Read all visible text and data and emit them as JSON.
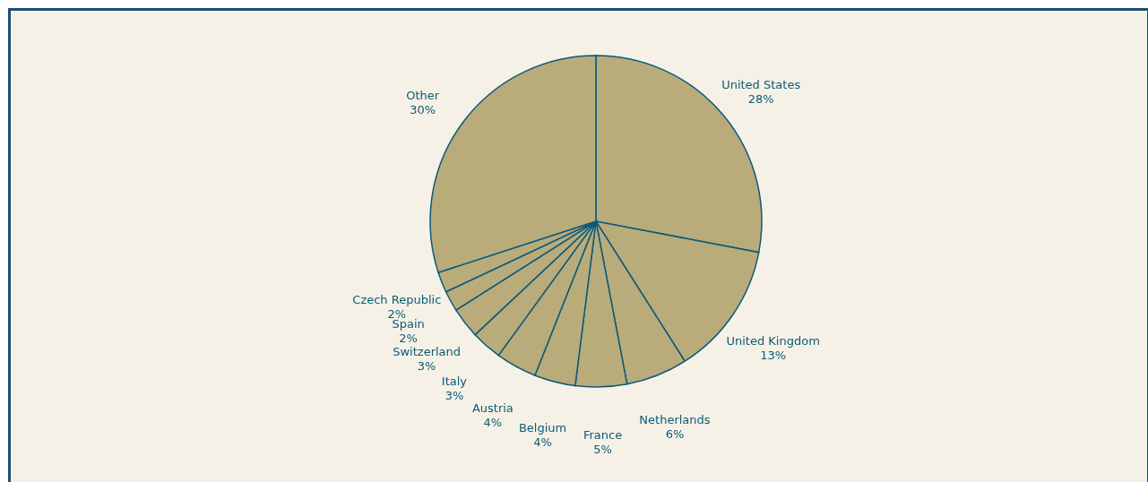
{
  "chart_data": {
    "type": "pie",
    "categories": [
      "United States",
      "United Kingdom",
      "Netherlands",
      "France",
      "Belgium",
      "Austria",
      "Italy",
      "Switzerland",
      "Spain",
      "Czech Republic",
      "Other"
    ],
    "values": [
      28,
      13,
      6,
      5,
      4,
      4,
      3,
      3,
      2,
      2,
      30
    ],
    "colors": [
      "#baab7b",
      "#baab7b",
      "#baab7b",
      "#baab7b",
      "#baab7b",
      "#baab7b",
      "#baab7b",
      "#baab7b",
      "#baab7b",
      "#baab7b",
      "#baab7b"
    ],
    "value_labels": [
      "28%",
      "13%",
      "6%",
      "5%",
      "4%",
      "4%",
      "3%",
      "3%",
      "2%",
      "2%",
      "30%"
    ]
  }
}
